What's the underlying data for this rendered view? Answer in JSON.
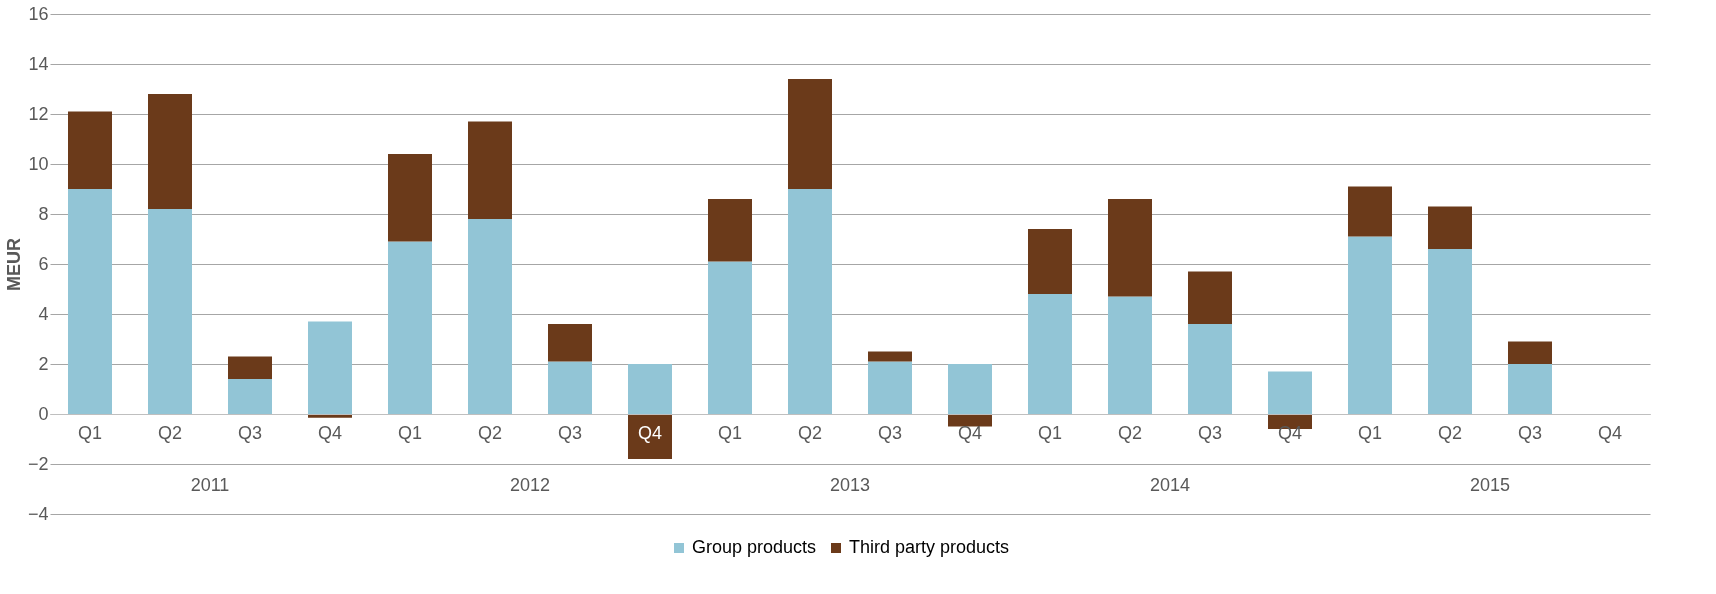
{
  "chart_data": {
    "type": "bar",
    "stacked": true,
    "ylabel": "MEUR",
    "categories": [
      "Q1",
      "Q2",
      "Q3",
      "Q4",
      "Q1",
      "Q2",
      "Q3",
      "Q4",
      "Q1",
      "Q2",
      "Q3",
      "Q4",
      "Q1",
      "Q2",
      "Q3",
      "Q4",
      "Q1",
      "Q2",
      "Q3",
      "Q4"
    ],
    "series": [
      {
        "name": "Group products",
        "color": "#92c5d6",
        "values": [
          9.0,
          8.2,
          1.4,
          3.7,
          6.9,
          7.8,
          2.1,
          2.0,
          6.1,
          9.0,
          2.1,
          2.0,
          4.8,
          4.7,
          3.6,
          1.7,
          7.1,
          6.6,
          2.0,
          null
        ]
      },
      {
        "name": "Third party products",
        "color": "#6b3a1a",
        "values": [
          3.1,
          4.6,
          0.9,
          -0.15,
          3.5,
          3.9,
          1.5,
          -1.8,
          2.5,
          4.4,
          0.4,
          -0.5,
          2.6,
          3.9,
          2.1,
          -0.6,
          2.0,
          1.7,
          0.9,
          null
        ]
      }
    ],
    "annotations": [
      "2011",
      "2012",
      "2013",
      "2014",
      "2015"
    ],
    "ylim": [
      -4,
      16
    ],
    "yticks": [
      -4,
      -2,
      0,
      2,
      4,
      6,
      8,
      10,
      12,
      14,
      16
    ],
    "grid": "y",
    "legend": "bottom"
  }
}
